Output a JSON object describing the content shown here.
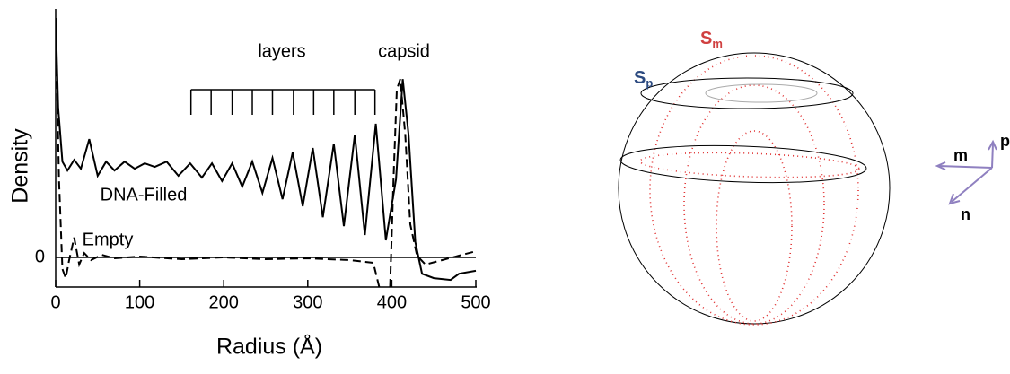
{
  "chart_data": {
    "type": "line",
    "xlabel": "Radius (Å)",
    "ylabel": "Density",
    "xlim": [
      0,
      500
    ],
    "xticks": [
      0,
      100,
      200,
      300,
      400,
      500
    ],
    "ylim": [
      -1,
      8.4
    ],
    "yticks": [
      0
    ],
    "grid": true,
    "annotations": [
      "layers",
      "capsid"
    ],
    "layer_marks": [
      161,
      185,
      210,
      234,
      258,
      283,
      307,
      331,
      356,
      380
    ],
    "series": [
      {
        "name": "DNA-Filled",
        "color": "#000000",
        "dashed": false,
        "x": [
          0,
          3,
          8,
          14,
          22,
          30,
          40,
          50,
          60,
          70,
          82,
          94,
          106,
          118,
          132,
          146,
          160,
          174,
          186,
          198,
          210,
          222,
          234,
          246,
          258,
          270,
          282,
          294,
          306,
          318,
          331,
          343,
          356,
          368,
          381,
          393,
          405,
          413,
          420,
          428,
          436,
          450,
          470,
          480,
          500
        ],
        "values": [
          8.09,
          5.06,
          3.24,
          2.94,
          3.3,
          3.0,
          4.0,
          2.76,
          3.24,
          2.94,
          3.24,
          3.0,
          3.18,
          3.06,
          3.24,
          2.76,
          3.18,
          2.7,
          3.18,
          2.58,
          3.18,
          2.39,
          3.24,
          2.18,
          3.36,
          1.97,
          3.55,
          1.73,
          3.7,
          1.36,
          3.85,
          1.06,
          4.15,
          0.76,
          4.52,
          0.58,
          2.64,
          6.03,
          4.15,
          0.52,
          -0.55,
          -0.7,
          -0.76,
          -0.55,
          -0.45
        ]
      },
      {
        "name": "Empty",
        "color": "#000000",
        "dashed": true,
        "x": [
          0,
          4,
          8,
          12,
          16,
          22,
          28,
          34,
          42,
          55,
          70,
          100,
          150,
          200,
          250,
          300,
          350,
          378,
          385,
          390,
          398,
          402,
          406,
          410,
          416,
          422,
          430,
          440,
          460,
          480,
          500
        ],
        "values": [
          8.09,
          2.64,
          -0.39,
          -0.7,
          -0.09,
          0.67,
          -0.24,
          0.15,
          -0.09,
          0.09,
          -0.03,
          0.03,
          -0.06,
          0,
          -0.06,
          -0.03,
          -0.09,
          -0.18,
          -1,
          null,
          -1,
          2.64,
          5.67,
          6.03,
          4.15,
          1.12,
          0.06,
          -0.24,
          -0.09,
          0.06,
          0.21
        ]
      }
    ]
  },
  "diagram": {
    "labels": [
      {
        "main": "S",
        "sub": "p"
      },
      {
        "main": "S",
        "sub": "m"
      },
      {
        "main": "p"
      },
      {
        "main": "m"
      },
      {
        "main": "n"
      }
    ]
  }
}
